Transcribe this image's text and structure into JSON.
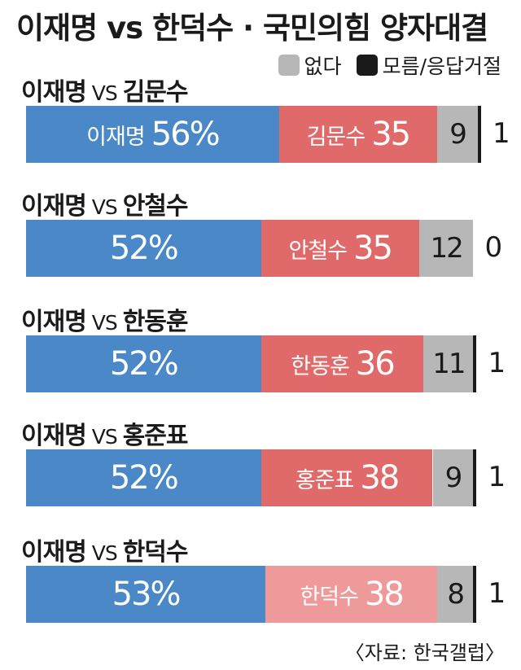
{
  "title": "이재명 vs 한덕수 · 국민의힘 양자대결",
  "legend": [
    {
      "label": "없다",
      "color": "#b7b7b7"
    },
    {
      "label": "모름/응답거절",
      "color": "#1a1a1a"
    }
  ],
  "source": "〈자료: 한국갤럽〉",
  "colors": {
    "lee": "#4a88c8",
    "opponent": "#e06a6a",
    "opponent_light": "#ef9a9a",
    "none": "#b7b7b7",
    "refuse": "#1a1a1a"
  },
  "chart_data": {
    "type": "bar",
    "stacked": true,
    "orientation": "horizontal",
    "title": "이재명 vs 한덕수 · 국민의힘 양자대결",
    "categories": [
      "이재명 VS 김문수",
      "이재명 VS 안철수",
      "이재명 VS 한동훈",
      "이재명 VS 홍준표",
      "이재명 VS 한덕수"
    ],
    "rows": [
      {
        "left": "이재명",
        "vs": "VS",
        "right": "김문수",
        "lee": 56,
        "opp": 35,
        "none": 9,
        "refuse": 1,
        "lee_label": "이재명",
        "lee_text": "56%",
        "opp_text": "35",
        "none_text": "9",
        "refuse_text": "1"
      },
      {
        "left": "이재명",
        "vs": "VS",
        "right": "안철수",
        "lee": 52,
        "opp": 35,
        "none": 12,
        "refuse": 0,
        "lee_label": "",
        "lee_text": "52%",
        "opp_text": "35",
        "none_text": "12",
        "refuse_text": "0"
      },
      {
        "left": "이재명",
        "vs": "VS",
        "right": "한동훈",
        "lee": 52,
        "opp": 36,
        "none": 11,
        "refuse": 1,
        "lee_label": "",
        "lee_text": "52%",
        "opp_text": "36",
        "none_text": "11",
        "refuse_text": "1"
      },
      {
        "left": "이재명",
        "vs": "VS",
        "right": "홍준표",
        "lee": 52,
        "opp": 38,
        "none": 9,
        "refuse": 1,
        "lee_label": "",
        "lee_text": "52%",
        "opp_text": "38",
        "none_text": "9",
        "refuse_text": "1"
      },
      {
        "left": "이재명",
        "vs": "VS",
        "right": "한덕수",
        "lee": 53,
        "opp": 38,
        "none": 8,
        "refuse": 1,
        "lee_label": "",
        "lee_text": "53%",
        "opp_text": "38",
        "none_text": "8",
        "refuse_text": "1",
        "highlight": true
      }
    ]
  }
}
